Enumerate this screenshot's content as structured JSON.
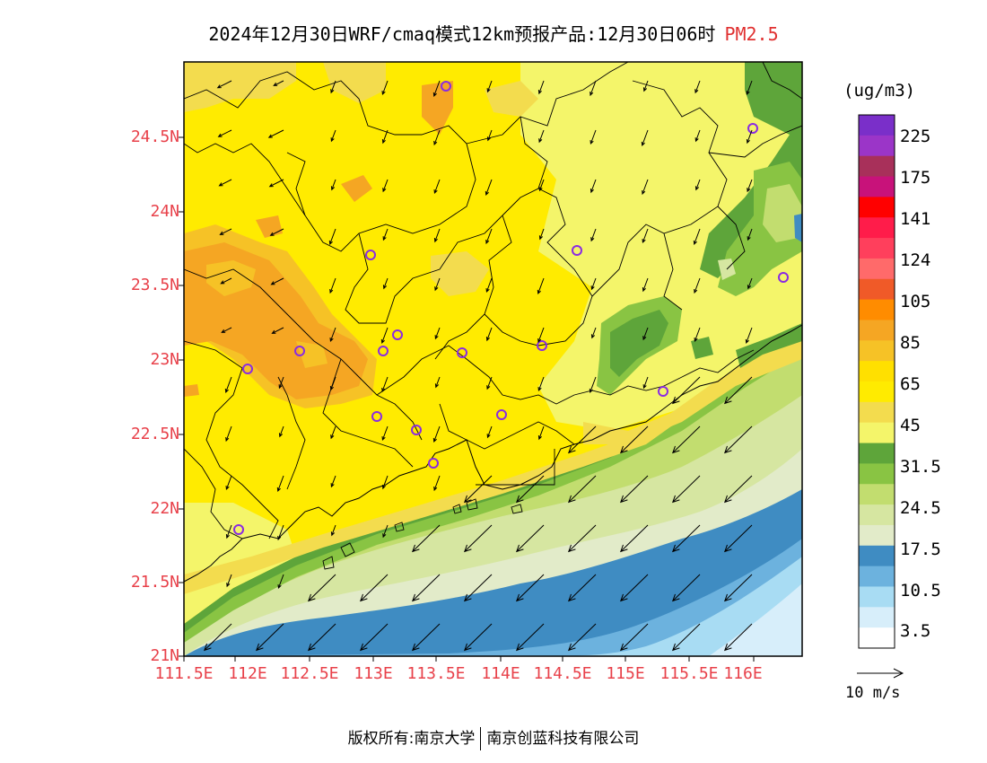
{
  "title": {
    "main": "2024年12月30日WRF/cmaq模式12km预报产品:12月30日06时",
    "pollutant": "PM2.5"
  },
  "axes": {
    "lat_labels": [
      "24.5N",
      "24N",
      "23.5N",
      "23N",
      "22.5N",
      "22N",
      "21.5N",
      "21N"
    ],
    "lon_labels": [
      "111.5E",
      "112E",
      "112.5E",
      "113E",
      "113.5E",
      "114E",
      "114.5E",
      "115E",
      "115.5E",
      "116E"
    ]
  },
  "legend": {
    "unit": "(ug/m3)",
    "labels": [
      "225",
      "175",
      "141",
      "124",
      "105",
      "85",
      "65",
      "45",
      "31.5",
      "24.5",
      "17.5",
      "10.5",
      "3.5"
    ],
    "colors": [
      "#7a2fc9",
      "#9b35c8",
      "#a8305a",
      "#c8127a",
      "#ff0000",
      "#ff1c4a",
      "#ff3f5c",
      "#ff6a6a",
      "#f05a28",
      "#ff8c00",
      "#f5a623",
      "#f6c226",
      "#ffe000",
      "#ffeb00",
      "#f3dc4e",
      "#f4f56a",
      "#5ea53a",
      "#89c443",
      "#c2dd6f",
      "#d6e6a1",
      "#e2ebc9",
      "#3f8cc2",
      "#6cb2de",
      "#a8dcf3",
      "#d7eefa",
      "#ffffff"
    ]
  },
  "wind": {
    "reference_label": "10 m/s"
  },
  "footer": {
    "left": "版权所有:南京大学",
    "right": "南京创蓝科技有限公司"
  }
}
